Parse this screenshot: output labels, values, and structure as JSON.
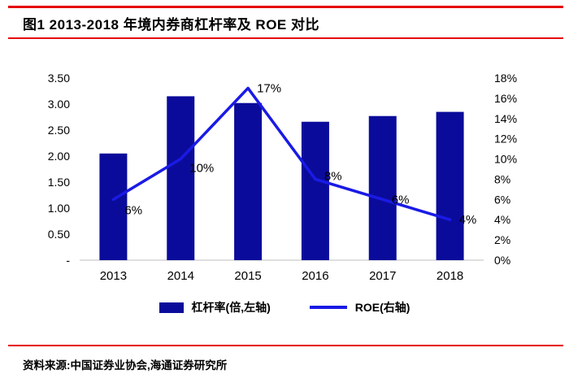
{
  "header": {
    "title": "图1  2013-2018 年境内券商杠杆率及 ROE 对比"
  },
  "chart_data": {
    "type": "bar",
    "subtype": "bar+line combo",
    "categories": [
      "2013",
      "2014",
      "2015",
      "2016",
      "2017",
      "2018"
    ],
    "series": [
      {
        "name": "杠杆率(倍,左轴)",
        "type": "bar",
        "axis": "left",
        "color": "#0b0b9b",
        "values": [
          2.05,
          3.15,
          3.02,
          2.66,
          2.77,
          2.85
        ]
      },
      {
        "name": "ROE(右轴)",
        "type": "line",
        "axis": "right",
        "color": "#1a1ae6",
        "values": [
          6,
          10,
          17,
          8,
          6,
          4
        ],
        "labels": [
          "6%",
          "10%",
          "17%",
          "8%",
          "6%",
          "4%"
        ]
      }
    ],
    "left_axis": {
      "min": 0,
      "max": 3.5,
      "step": 0.5,
      "tick_labels": [
        "-",
        "0.50",
        "1.00",
        "1.50",
        "2.00",
        "2.50",
        "3.00",
        "3.50"
      ]
    },
    "right_axis": {
      "min": 0,
      "max": 18,
      "step": 2,
      "tick_labels": [
        "0%",
        "2%",
        "4%",
        "6%",
        "8%",
        "10%",
        "12%",
        "14%",
        "16%",
        "18%"
      ]
    },
    "grid": false,
    "legend_position": "bottom"
  },
  "footer": {
    "source": "资料来源:中国证券业协会,海通证券研究所"
  },
  "colors": {
    "bar": "#0b0b9b",
    "line": "#1a1ae6",
    "accent_red": "#e60000",
    "axis_line": "#bfbfbf"
  }
}
